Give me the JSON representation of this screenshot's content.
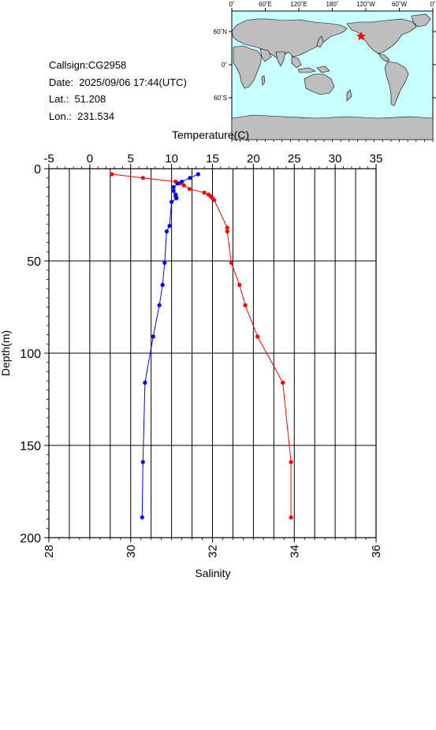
{
  "info": {
    "callsign": "Callsign:CG2958",
    "date": "Date:  2025/09/06 17:44(UTC)",
    "lat": "Lat.:  51.208",
    "lon": "Lon.:  231.534"
  },
  "map": {
    "lon_labels": [
      "0˚",
      "60˚E",
      "120˚E",
      "180˚",
      "120˚W",
      "60˚W",
      "0˚"
    ],
    "lat_labels": [
      "60˚N",
      "0˚",
      "60˚S"
    ],
    "marker_lat": 51.208,
    "marker_lon": 231.534,
    "colors": {
      "ocean": "#c8ffff",
      "land": "#bebebe",
      "marker": "#ff0000"
    }
  },
  "chart_data": {
    "type": "line",
    "xlabel_top": "Temperature(C)",
    "xlabel_bottom": "Salinity",
    "ylabel": "Depth(m)",
    "temperature_ticks": [
      -5,
      0,
      5,
      10,
      15,
      20,
      25,
      30,
      35
    ],
    "salinity_ticks": [
      28,
      30,
      32,
      34,
      36
    ],
    "depth_ticks": [
      0,
      50,
      100,
      150,
      200
    ],
    "temperature_range": [
      -5,
      35
    ],
    "salinity_range": [
      28,
      36
    ],
    "depth_range": [
      0,
      200
    ],
    "grid": true,
    "series": [
      {
        "axis": "temperature",
        "color": "#ff0000",
        "points": [
          [
            2.7,
            3
          ],
          [
            6.5,
            5
          ],
          [
            10.5,
            7
          ],
          [
            11.0,
            8
          ],
          [
            11.5,
            9
          ],
          [
            12.2,
            11
          ],
          [
            14.0,
            13
          ],
          [
            14.5,
            14
          ],
          [
            14.8,
            15
          ],
          [
            15.0,
            16
          ],
          [
            15.2,
            17
          ],
          [
            16.8,
            32
          ],
          [
            16.8,
            34
          ],
          [
            17.3,
            51
          ],
          [
            18.3,
            63
          ],
          [
            19.0,
            74
          ],
          [
            20.5,
            91
          ],
          [
            23.6,
            116
          ],
          [
            24.6,
            159
          ],
          [
            24.6,
            189
          ]
        ]
      },
      {
        "axis": "salinity",
        "color": "#0000ff",
        "points": [
          [
            31.65,
            3
          ],
          [
            31.45,
            5
          ],
          [
            31.25,
            7
          ],
          [
            31.15,
            8
          ],
          [
            31.05,
            10
          ],
          [
            31.05,
            12
          ],
          [
            31.1,
            14
          ],
          [
            31.1,
            15
          ],
          [
            31.12,
            16
          ],
          [
            31.0,
            18
          ],
          [
            30.95,
            31
          ],
          [
            30.88,
            34
          ],
          [
            30.83,
            51
          ],
          [
            30.78,
            63
          ],
          [
            30.7,
            74
          ],
          [
            30.55,
            91
          ],
          [
            30.35,
            116
          ],
          [
            30.3,
            159
          ],
          [
            30.28,
            189
          ]
        ]
      }
    ]
  }
}
